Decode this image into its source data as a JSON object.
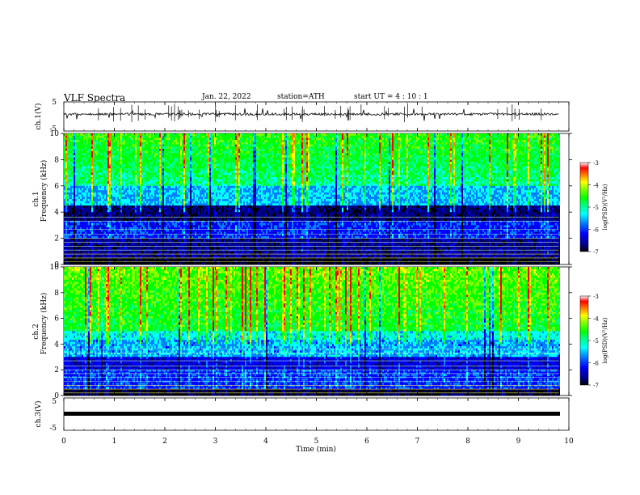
{
  "header": {
    "title": "VLF  Spectra",
    "date": "Jan. 22, 2022",
    "station": "station=ATH",
    "start": "start  UT  =   4  : 10 : 1"
  },
  "chart_data": [
    {
      "type": "line",
      "panel": "ch1-waveform",
      "ylabel": "ch.1(V)",
      "ylim": [
        -5,
        5
      ],
      "yticks": [
        5,
        -5
      ],
      "xlim": [
        0,
        10
      ],
      "x_extent": [
        0,
        9.8
      ],
      "series": [
        {
          "values_description_level": 0,
          "baseline": 0
        }
      ],
      "color": "#000000"
    },
    {
      "type": "heatmap",
      "panel": "ch1-spectrogram",
      "ylabel": "Frequency (kHz)",
      "channel_label": "ch.1",
      "ylim": [
        0,
        10
      ],
      "yticks": [
        0,
        2,
        4,
        6,
        8,
        10
      ],
      "xlim": [
        0,
        10
      ],
      "x_extent": [
        0,
        9.8
      ],
      "colorbar": {
        "label": "log(PSD)(V²/Hz)",
        "range": [
          -7,
          -3
        ],
        "ticks": [
          -3,
          -4,
          -5,
          -6,
          -7
        ]
      }
    },
    {
      "type": "heatmap",
      "panel": "ch2-spectrogram",
      "ylabel": "Frequency (kHz)",
      "channel_label": "ch.2",
      "ylim": [
        0,
        10
      ],
      "yticks": [
        0,
        2,
        4,
        6,
        8,
        10
      ],
      "xlim": [
        0,
        10
      ],
      "x_extent": [
        0,
        9.8
      ],
      "colorbar": {
        "label": "log(PSD)(V²/Hz)",
        "range": [
          -7,
          -3
        ],
        "ticks": [
          -3,
          -4,
          -5,
          -6,
          -7
        ]
      }
    },
    {
      "type": "line",
      "panel": "ch3-waveform",
      "ylabel": "ch.3(V)",
      "ylim": [
        -5,
        5
      ],
      "yticks": [
        5,
        -5
      ],
      "xlim": [
        0,
        10
      ],
      "x_extent": [
        0,
        9.8
      ],
      "series": [
        {
          "baseline": 0
        }
      ],
      "color": "#000000"
    }
  ],
  "xaxis": {
    "label": "Time  (min)",
    "ticks": [
      0,
      1,
      2,
      3,
      4,
      5,
      6,
      7,
      8,
      9,
      10
    ]
  },
  "colors": {
    "cmap": [
      "#000000",
      "#00008b",
      "#0000ff",
      "#0080ff",
      "#00ffff",
      "#00ff80",
      "#00ff00",
      "#80ff00",
      "#ffff00",
      "#ff8000",
      "#ff0000",
      "#ffffff"
    ]
  }
}
